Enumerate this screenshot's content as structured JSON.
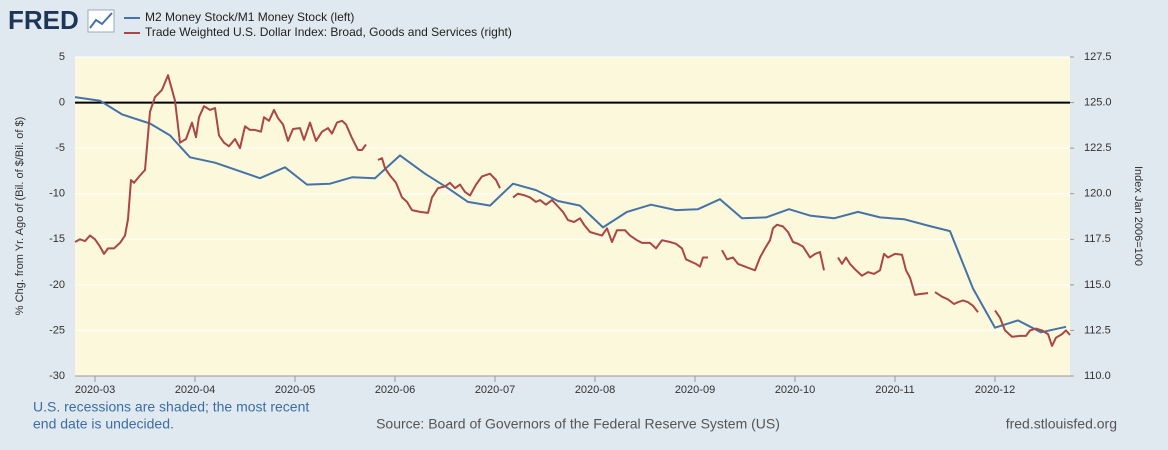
{
  "logo": "FRED",
  "chart_data": {
    "type": "line",
    "ylabel": "% Chg. from Yr. Ago of (Bil. of $/Bil. of $)",
    "y2label": "Index Jan 2006=100",
    "xlim": [
      2.8,
      12.75
    ],
    "xticks": [
      {
        "value": 3,
        "label": "2020-03"
      },
      {
        "value": 4,
        "label": "2020-04"
      },
      {
        "value": 5,
        "label": "2020-05"
      },
      {
        "value": 6,
        "label": "2020-06"
      },
      {
        "value": 7,
        "label": "2020-07"
      },
      {
        "value": 8,
        "label": "2020-08"
      },
      {
        "value": 9,
        "label": "2020-09"
      },
      {
        "value": 10,
        "label": "2020-10"
      },
      {
        "value": 11,
        "label": "2020-11"
      },
      {
        "value": 12,
        "label": "2020-12"
      }
    ],
    "ylim": [
      -30,
      5
    ],
    "yticks": [
      -30,
      -25,
      -20,
      -15,
      -10,
      -5,
      0,
      5
    ],
    "y2lim": [
      110,
      127.5
    ],
    "y2ticks": [
      {
        "value": 110,
        "label": "110.0"
      },
      112.5,
      {
        "value": 115,
        "label": "115.0"
      },
      117.5,
      {
        "value": 120,
        "label": "120.0"
      },
      122.5,
      {
        "value": 125,
        "label": "125.0"
      },
      127.5
    ],
    "grid": true,
    "legend": "top",
    "series": [
      {
        "name": "M2 Money Stock/M1 Money Stock (left)",
        "color": "#4572a7",
        "x": [
          2.8,
          3.05,
          3.27,
          3.55,
          3.75,
          3.95,
          4.2,
          4.65,
          4.9,
          5.12,
          5.35,
          5.57,
          5.8,
          6.05,
          6.3,
          6.53,
          6.73,
          6.95,
          7.18,
          7.41,
          7.63,
          7.85,
          8.08,
          8.32,
          8.56,
          8.81,
          9.03,
          9.25,
          9.47,
          9.71,
          9.94,
          10.15,
          10.39,
          10.63,
          10.85,
          11.09,
          11.33,
          11.55,
          11.78,
          12.0,
          12.23,
          12.46,
          12.71
        ],
        "values": [
          0.6,
          0.2,
          -1.3,
          -2.3,
          -3.6,
          -6.0,
          -6.6,
          -8.3,
          -7.1,
          -9.0,
          -8.9,
          -8.2,
          -8.3,
          -5.8,
          -7.8,
          -9.4,
          -10.9,
          -11.3,
          -8.9,
          -9.6,
          -10.8,
          -11.3,
          -13.7,
          -12.0,
          -11.2,
          -11.8,
          -11.7,
          -10.6,
          -12.7,
          -12.6,
          -11.7,
          -12.4,
          -12.7,
          -12.0,
          -12.6,
          -12.8,
          -13.5,
          -14.1,
          -20.4,
          -24.7,
          -23.9,
          -25.2,
          -24.6
        ]
      },
      {
        "name": "Trade Weighted U.S. Dollar Index: Broad, Goods and Services (right)",
        "color": "#aa4643",
        "axis": "y2",
        "x": [
          2.8,
          2.85,
          2.9,
          2.95,
          3.0,
          3.05,
          3.09,
          3.13,
          3.19,
          3.25,
          3.3,
          3.33,
          3.36,
          3.39,
          3.45,
          3.5,
          3.55,
          3.6,
          3.67,
          3.73,
          3.8,
          3.85,
          3.91,
          3.97,
          4.01,
          4.04,
          4.09,
          4.15,
          4.2,
          4.24,
          4.29,
          4.34,
          4.4,
          4.45,
          4.5,
          4.55,
          4.6,
          4.66,
          4.69,
          4.74,
          4.79,
          4.83,
          4.88,
          4.93,
          4.98,
          5.05,
          5.09,
          5.15,
          5.21,
          5.27,
          5.33,
          5.37,
          5.42,
          5.47,
          5.51,
          5.57,
          5.63,
          5.67,
          5.71,
          5.77,
          5.83,
          5.87,
          5.9,
          5.95,
          6.01,
          6.07,
          6.12,
          6.17,
          6.25,
          6.33,
          6.37,
          6.43,
          6.5,
          6.55,
          6.6,
          6.65,
          6.7,
          6.75,
          6.81,
          6.87,
          6.95,
          7.01,
          7.05,
          7.11,
          7.18,
          7.23,
          7.3,
          7.35,
          7.41,
          7.45,
          7.51,
          7.57,
          7.63,
          7.68,
          7.73,
          7.79,
          7.85,
          7.89,
          7.95,
          8.01,
          8.07,
          8.12,
          8.17,
          8.22,
          8.3,
          8.35,
          8.42,
          8.47,
          8.55,
          8.61,
          8.67,
          8.75,
          8.81,
          8.87,
          8.91,
          8.97,
          9.01,
          9.05,
          9.08,
          9.13,
          9.2,
          9.27,
          9.32,
          9.38,
          9.43,
          9.5,
          9.55,
          9.6,
          9.65,
          9.7,
          9.75,
          9.78,
          9.82,
          9.88,
          9.93,
          9.98,
          10.03,
          10.08,
          10.15,
          10.2,
          10.25,
          10.29,
          10.36,
          10.43,
          10.47,
          10.51,
          10.55,
          10.61,
          10.67,
          10.73,
          10.79,
          10.85,
          10.89,
          10.93,
          11.0,
          11.07,
          11.11,
          11.15,
          11.2,
          11.25,
          11.33,
          11.36,
          11.4,
          11.47,
          11.53,
          11.59,
          11.63,
          11.68,
          11.73,
          11.78,
          11.83,
          11.91,
          12.0,
          12.05,
          12.1,
          12.17,
          12.25,
          12.31,
          12.35,
          12.41,
          12.47,
          12.53,
          12.57,
          12.61,
          12.67,
          12.71,
          12.75
        ],
        "values": [
          117.35,
          117.5,
          117.4,
          117.7,
          117.5,
          117.1,
          116.7,
          117.0,
          117.0,
          117.3,
          117.7,
          118.6,
          120.75,
          120.6,
          121.0,
          121.3,
          124.5,
          125.3,
          125.7,
          126.5,
          125.1,
          122.8,
          123.0,
          123.9,
          123.1,
          124.2,
          124.8,
          124.6,
          124.7,
          123.2,
          122.8,
          122.6,
          123.0,
          122.5,
          123.7,
          123.5,
          123.5,
          123.4,
          124.2,
          124.0,
          124.6,
          124.15,
          123.8,
          122.9,
          123.55,
          123.6,
          122.95,
          123.9,
          122.9,
          123.4,
          123.6,
          123.3,
          123.9,
          124.0,
          123.8,
          123.05,
          122.4,
          122.4,
          122.7,
          null,
          121.85,
          121.95,
          121.4,
          121.0,
          120.6,
          119.8,
          119.55,
          119.1,
          119.0,
          118.95,
          119.8,
          120.3,
          120.4,
          120.6,
          120.3,
          120.5,
          120.1,
          119.9,
          120.5,
          120.95,
          121.1,
          120.75,
          120.3,
          null,
          119.8,
          120.0,
          119.9,
          119.8,
          119.55,
          119.65,
          119.4,
          119.65,
          119.3,
          119.0,
          118.55,
          118.45,
          118.65,
          118.3,
          117.9,
          117.8,
          117.7,
          118.1,
          117.35,
          118.0,
          118.0,
          117.7,
          117.45,
          117.3,
          117.3,
          117.0,
          117.45,
          117.35,
          117.25,
          117.0,
          116.4,
          116.25,
          116.15,
          116.0,
          116.5,
          116.5,
          null,
          116.9,
          116.4,
          116.5,
          116.15,
          116.0,
          115.9,
          115.8,
          116.5,
          117.0,
          117.45,
          118.1,
          118.3,
          118.2,
          117.9,
          117.35,
          117.25,
          117.1,
          116.5,
          116.7,
          116.8,
          115.8,
          null,
          116.5,
          116.15,
          116.5,
          116.15,
          115.8,
          115.5,
          115.7,
          115.6,
          115.8,
          116.7,
          116.5,
          116.7,
          116.65,
          115.8,
          115.4,
          114.45,
          114.5,
          114.55,
          null,
          114.6,
          114.35,
          114.2,
          113.95,
          114.05,
          114.15,
          114.05,
          113.85,
          113.5,
          null,
          113.6,
          113.2,
          112.5,
          112.15,
          112.2,
          112.2,
          112.5,
          112.6,
          112.5,
          112.3,
          111.65,
          112.1,
          112.3,
          112.5,
          112.25
        ]
      }
    ]
  },
  "footer": {
    "note_line1": "U.S. recessions are shaded; the most recent",
    "note_line2": "end date is undecided.",
    "source": "Source: Board of Governors of the Federal Reserve System (US)",
    "site": "fred.stlouisfed.org"
  }
}
